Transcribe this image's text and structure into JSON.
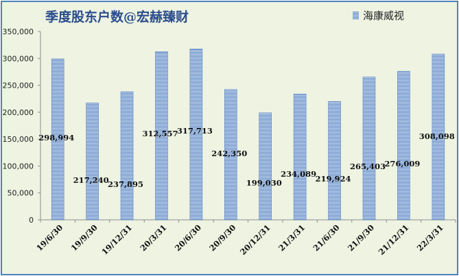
{
  "chart_data": {
    "type": "bar",
    "title": "季度股东户数@宏赫臻财",
    "categories": [
      "19/6/30",
      "19/9/30",
      "19/12/31",
      "20/3/31",
      "20/6/30",
      "20/9/30",
      "20/12/31",
      "21/3/31",
      "21/6/30",
      "21/9/30",
      "21/12/31",
      "22/3/31"
    ],
    "series": [
      {
        "name": "海康威视",
        "values": [
          298994,
          217240,
          237895,
          312557,
          317713,
          242350,
          199030,
          234089,
          219924,
          265403,
          276009,
          308098
        ],
        "labels": [
          "298,994",
          "217,240",
          "237,895",
          "312,557",
          "317,713",
          "242,350",
          "199,030",
          "234,089",
          "219,924",
          "265,403",
          "276,009",
          "308,098"
        ]
      }
    ],
    "y_ticks": [
      "0",
      "50,000",
      "100,000",
      "150,000",
      "200,000",
      "250,000",
      "300,000",
      "350,000"
    ],
    "ylim": [
      0,
      350000
    ],
    "legend_position": "top-right",
    "grid": false,
    "colors": {
      "bar": "#4f7ec0",
      "bar_gap": "#dfe8f5",
      "plot_bg": "#eef3e2",
      "frame": "#4f81bd",
      "title": "#2a4c8c"
    }
  }
}
